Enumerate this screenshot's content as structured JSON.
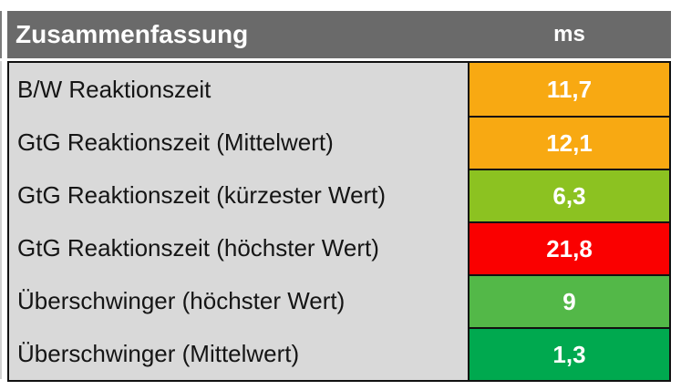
{
  "table": {
    "title": "Zusammenfassung",
    "unit_header": "ms",
    "rows": [
      {
        "label": "B/W Reaktionszeit",
        "value": "11,7",
        "color": "#F8A912"
      },
      {
        "label": "GtG Reaktionszeit (Mittelwert)",
        "value": "12,1",
        "color": "#F8A912"
      },
      {
        "label": "GtG Reaktionszeit (kürzester Wert)",
        "value": "6,3",
        "color": "#8CC221"
      },
      {
        "label": "GtG Reaktionszeit (höchster Wert)",
        "value": "21,8",
        "color": "#FA0000"
      },
      {
        "label": "Überschwinger (höchster Wert)",
        "value": "9",
        "color": "#53B848"
      },
      {
        "label": "Überschwinger (Mittelwert)",
        "value": "1,3",
        "color": "#00A94F"
      }
    ],
    "colors": {
      "header_bg": "#6A6A6A",
      "header_text": "#FFFFFF",
      "label_bg": "#D9D9D9",
      "label_text": "#151515",
      "value_text": "#FFFFFF",
      "border": "#111111"
    }
  },
  "chart_data": {
    "type": "table",
    "title": "Zusammenfassung",
    "columns": [
      "",
      "ms"
    ],
    "rows": [
      {
        "label": "B/W Reaktionszeit",
        "ms": 11.7,
        "rating_color": "orange"
      },
      {
        "label": "GtG Reaktionszeit (Mittelwert)",
        "ms": 12.1,
        "rating_color": "orange"
      },
      {
        "label": "GtG Reaktionszeit (kürzester Wert)",
        "ms": 6.3,
        "rating_color": "yellow-green"
      },
      {
        "label": "GtG Reaktionszeit (höchster Wert)",
        "ms": 21.8,
        "rating_color": "red"
      },
      {
        "label": "Überschwinger (höchster Wert)",
        "ms": 9,
        "rating_color": "green"
      },
      {
        "label": "Überschwinger (Mittelwert)",
        "ms": 1.3,
        "rating_color": "dark-green"
      }
    ]
  }
}
